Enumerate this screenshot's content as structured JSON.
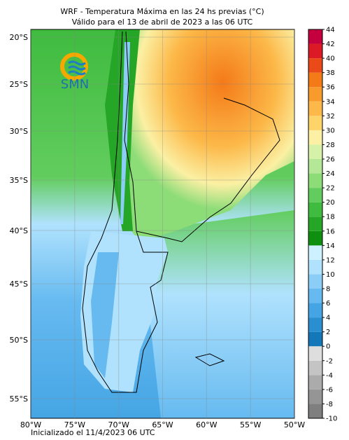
{
  "header": {
    "title": "WRF - Temperatura Máxima en las 24 hs previas (°C)",
    "subtitle": "Válido para el 13 de abril de 2023 a las 06 UTC"
  },
  "map": {
    "lat_labels": [
      "20°S",
      "25°S",
      "30°S",
      "35°S",
      "40°S",
      "45°S",
      "50°S",
      "55°S"
    ],
    "lon_labels": [
      "80°W",
      "75°W",
      "70°W",
      "65°W",
      "60°W",
      "55°W",
      "50°W"
    ],
    "logo": "SMN"
  },
  "colorbar": {
    "ticks": [
      -10,
      -8,
      -6,
      -4,
      -2,
      0,
      2,
      4,
      6,
      8,
      10,
      12,
      14,
      16,
      18,
      20,
      22,
      24,
      26,
      28,
      30,
      32,
      34,
      36,
      38,
      40,
      42,
      44
    ],
    "colors": [
      "#7f7f7f",
      "#959595",
      "#ababab",
      "#c4c4c4",
      "#dedede",
      "#1478b8",
      "#2a8fd0",
      "#45a5e4",
      "#66baf0",
      "#8ccdf8",
      "#b0e2fd",
      "#cdf1ff",
      "#0f8f0f",
      "#26a626",
      "#3fbb3f",
      "#62cd5e",
      "#8cdc78",
      "#b4e896",
      "#d6f1a8",
      "#fbf0a4",
      "#fdd36a",
      "#fcb848",
      "#f89a2c",
      "#f47a18",
      "#ea4a18",
      "#dc1a26",
      "#c4003e"
    ]
  },
  "footer": {
    "text": "Inicializado el 11/4/2023 06 UTC"
  }
}
